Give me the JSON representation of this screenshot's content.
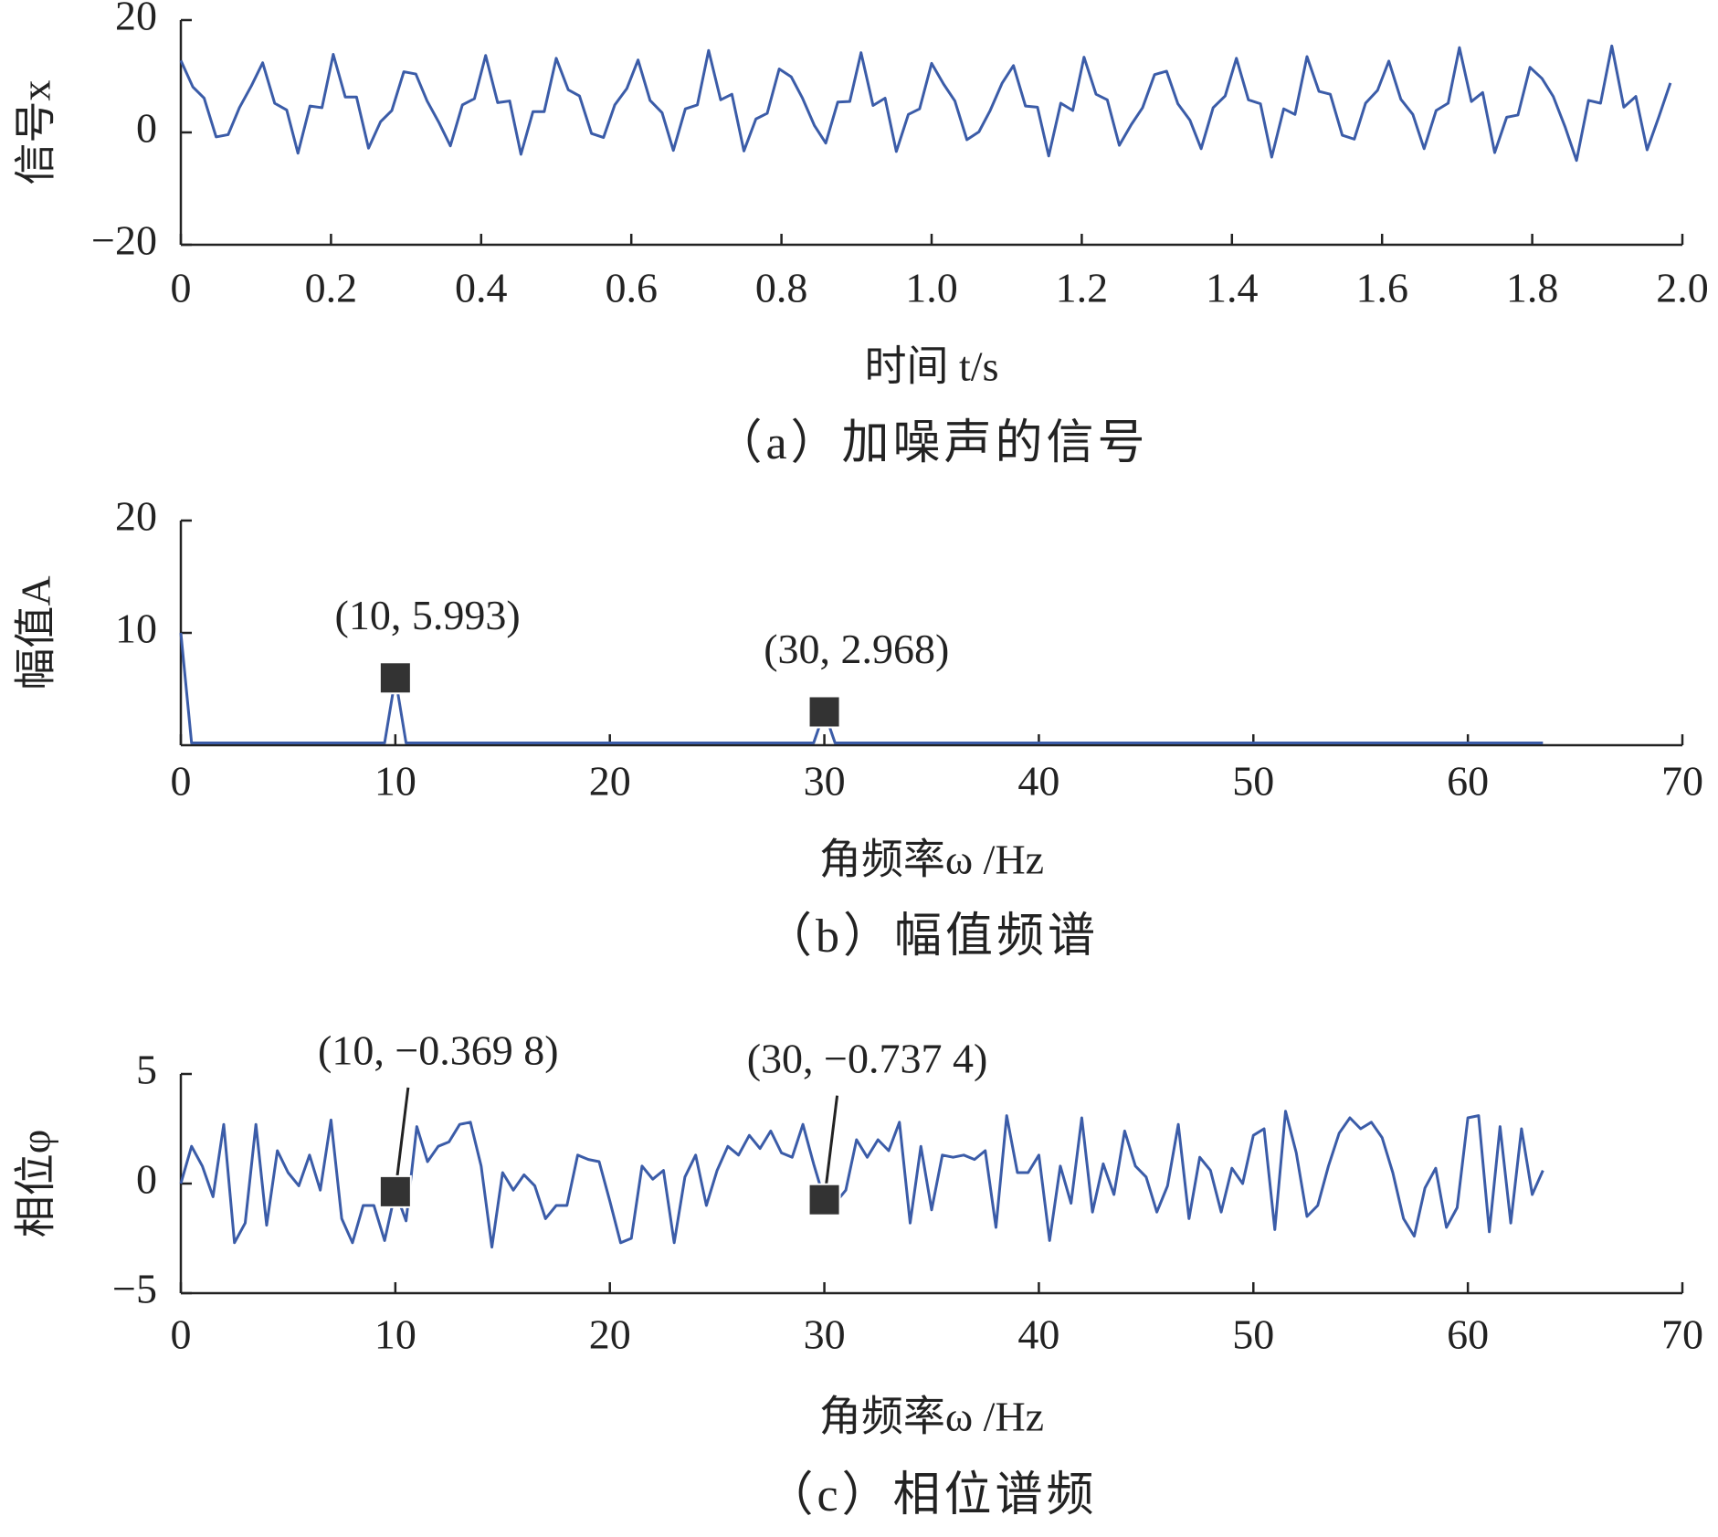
{
  "chart_data": [
    {
      "type": "line",
      "ylabel": "信号x",
      "xlabel": "时间 t/s",
      "caption": "（a）加噪声的信号",
      "color": "#3b5ca8",
      "xlim": [
        0,
        2
      ],
      "xticks": [
        0,
        0.2,
        0.4,
        0.6,
        0.8,
        {
          "value": 1,
          "label": "1.0"
        },
        1.2,
        1.4,
        1.6,
        1.8,
        {
          "value": 2,
          "label": "2.0"
        }
      ],
      "ylim": [
        -20,
        20
      ],
      "yticks": [
        {
          "value": -20,
          "label": "−20"
        },
        0,
        20
      ],
      "x": [
        0,
        0.016,
        0.031,
        0.047,
        0.063,
        0.078,
        0.094,
        0.109,
        0.125,
        0.141,
        0.156,
        0.172,
        0.188,
        0.203,
        0.219,
        0.234,
        0.25,
        0.266,
        0.281,
        0.297,
        0.313,
        0.328,
        0.344,
        0.359,
        0.375,
        0.391,
        0.406,
        0.422,
        0.438,
        0.453,
        0.469,
        0.484,
        0.5,
        0.516,
        0.531,
        0.547,
        0.563,
        0.578,
        0.594,
        0.609,
        0.625,
        0.641,
        0.656,
        0.672,
        0.688,
        0.703,
        0.719,
        0.734,
        0.75,
        0.766,
        0.781,
        0.797,
        0.813,
        0.828,
        0.844,
        0.859,
        0.875,
        0.891,
        0.906,
        0.922,
        0.938,
        0.953,
        0.969,
        0.984,
        1,
        1.016,
        1.031,
        1.047,
        1.063,
        1.078,
        1.094,
        1.109,
        1.125,
        1.141,
        1.156,
        1.172,
        1.188,
        1.203,
        1.219,
        1.234,
        1.25,
        1.266,
        1.281,
        1.297,
        1.313,
        1.328,
        1.344,
        1.359,
        1.375,
        1.391,
        1.406,
        1.422,
        1.438,
        1.453,
        1.469,
        1.484,
        1.5,
        1.516,
        1.531,
        1.547,
        1.563,
        1.578,
        1.594,
        1.609,
        1.625,
        1.641,
        1.656,
        1.672,
        1.688,
        1.703,
        1.719,
        1.734,
        1.75,
        1.766,
        1.781,
        1.797,
        1.813,
        1.828,
        1.844,
        1.859,
        1.875,
        1.891,
        1.906,
        1.922,
        1.938,
        1.953,
        1.969,
        1.984
      ],
      "values": [
        12.8,
        8.1,
        6.1,
        -0.8,
        -0.4,
        4.4,
        8.3,
        12.4,
        5.2,
        4.0,
        -3.7,
        4.7,
        4.4,
        13.9,
        6.3,
        6.3,
        -2.8,
        1.9,
        3.9,
        10.8,
        10.4,
        5.6,
        1.7,
        -2.4,
        4.9,
        6.0,
        13.7,
        5.3,
        5.6,
        -3.9,
        3.7,
        3.7,
        13.2,
        7.6,
        6.5,
        -0.2,
        -0.9,
        4.9,
        7.8,
        12.9,
        5.7,
        3.5,
        -3.2,
        4.2,
        4.9,
        14.6,
        5.8,
        6.8,
        -3.3,
        2.4,
        3.4,
        11.3,
        9.9,
        6.1,
        1.2,
        -1.9,
        5.4,
        5.5,
        14.2,
        4.8,
        6.1,
        -3.4,
        3.2,
        4.2,
        12.3,
        8.6,
        5.6,
        -1.3,
        0.1,
        3.9,
        8.8,
        11.9,
        4.7,
        4.5,
        -4.2,
        5.2,
        3.9,
        13.4,
        6.8,
        5.8,
        -2.3,
        1.4,
        4.4,
        10.3,
        10.9,
        5.1,
        2.2,
        -2.9,
        4.4,
        6.5,
        13.2,
        5.8,
        5.1,
        -4.4,
        4.2,
        3.2,
        13.5,
        7.3,
        6.8,
        -0.5,
        -1.2,
        5.2,
        7.5,
        12.7,
        5.9,
        3.2,
        -2.9,
        3.9,
        5.2,
        15.1,
        5.5,
        7.1,
        -3.6,
        2.7,
        3.1,
        11.6,
        9.6,
        6.4,
        0.9,
        -5.0,
        5.7,
        5.2,
        15.4,
        4.5,
        6.4,
        -3.1,
        2.9,
        8.8
      ]
    },
    {
      "type": "line",
      "ylabel": "幅值A",
      "xlabel": "角频率ω /Hz",
      "caption": "（b）幅值频谱",
      "color": "#3b5ca8",
      "xlim": [
        0,
        70
      ],
      "xticks": [
        0,
        10,
        20,
        30,
        40,
        50,
        60,
        70
      ],
      "ylim": [
        0,
        20
      ],
      "yticks": [
        10,
        20
      ],
      "x": [
        0,
        0.5,
        9.5,
        10,
        10.5,
        29.5,
        30,
        30.5,
        63.5
      ],
      "values": [
        10,
        0.2,
        0.2,
        5.993,
        0.2,
        0.2,
        2.968,
        0.2,
        0.2
      ],
      "annotations": [
        {
          "text": "(10, 5.993)",
          "x": 10,
          "y": 5.993
        },
        {
          "text": "(30, 2.968)",
          "x": 30,
          "y": 2.968
        }
      ]
    },
    {
      "type": "line",
      "ylabel": "相位φ",
      "xlabel": "角频率ω /Hz",
      "caption": "（c）相位谱频",
      "color": "#3b5ca8",
      "xlim": [
        0,
        70
      ],
      "xticks": [
        0,
        10,
        20,
        30,
        40,
        50,
        60,
        70
      ],
      "ylim": [
        -5,
        5
      ],
      "yticks": [
        {
          "value": -5,
          "label": "−5"
        },
        0,
        5
      ],
      "x": [
        0,
        0.5,
        1,
        1.5,
        2,
        2.5,
        3,
        3.5,
        4,
        4.5,
        5,
        5.5,
        6,
        6.5,
        7,
        7.5,
        8,
        8.5,
        9,
        9.5,
        10,
        10.5,
        11,
        11.5,
        12,
        12.5,
        13,
        13.5,
        14,
        14.5,
        15,
        15.5,
        16,
        16.5,
        17,
        17.5,
        18,
        18.5,
        19,
        19.5,
        20,
        20.5,
        21,
        21.5,
        22,
        22.5,
        23,
        23.5,
        24,
        24.5,
        25,
        25.5,
        26,
        26.5,
        27,
        27.5,
        28,
        28.5,
        29,
        29.5,
        30,
        30.5,
        31,
        31.5,
        32,
        32.5,
        33,
        33.5,
        34,
        34.5,
        35,
        35.5,
        36,
        36.5,
        37,
        37.5,
        38,
        38.5,
        39,
        39.5,
        40,
        40.5,
        41,
        41.5,
        42,
        42.5,
        43,
        43.5,
        44,
        44.5,
        45,
        45.5,
        46,
        46.5,
        47,
        47.5,
        48,
        48.5,
        49,
        49.5,
        50,
        50.5,
        51,
        51.5,
        52,
        52.5,
        53,
        53.5,
        54,
        54.5,
        55,
        55.5,
        56,
        56.5,
        57,
        57.5,
        58,
        58.5,
        59,
        59.5,
        60,
        60.5,
        61,
        61.5,
        62,
        62.5,
        63,
        63.5
      ],
      "values": [
        0,
        1.7,
        0.8,
        -0.6,
        2.7,
        -2.7,
        -1.8,
        2.7,
        -1.9,
        1.5,
        0.5,
        -0.1,
        1.3,
        -0.3,
        2.9,
        -1.6,
        -2.7,
        -1,
        -1,
        -2.6,
        -0.3698,
        -1.7,
        2.6,
        1,
        1.7,
        1.9,
        2.7,
        2.8,
        0.8,
        -2.9,
        0.5,
        -0.3,
        0.4,
        -0.1,
        -1.6,
        -1,
        -1,
        1.3,
        1.1,
        1,
        -0.8,
        -2.7,
        -2.5,
        0.8,
        0.2,
        0.6,
        -2.7,
        0.3,
        1.3,
        -1,
        0.6,
        1.7,
        1.3,
        2.2,
        1.6,
        2.4,
        1.4,
        1.2,
        2.7,
        0.9,
        -0.7374,
        -0.9,
        -0.3,
        2,
        1.2,
        2,
        1.5,
        2.8,
        -1.8,
        1.7,
        -1.2,
        1.3,
        1.2,
        1.3,
        1.1,
        1.5,
        -2,
        3.1,
        0.5,
        0.5,
        1.3,
        -2.6,
        0.8,
        -0.9,
        3,
        -1.3,
        0.9,
        -0.5,
        2.4,
        0.8,
        0.3,
        -1.3,
        -0.1,
        2.7,
        -1.6,
        1.2,
        0.6,
        -1.3,
        0.7,
        0,
        2.2,
        2.5,
        -2.1,
        3.3,
        1.4,
        -1.5,
        -1,
        0.8,
        2.3,
        3,
        2.5,
        2.8,
        2.1,
        0.5,
        -1.6,
        -2.4,
        -0.2,
        0.7,
        -2,
        -1.1,
        3,
        3.1,
        -2.2,
        2.6,
        -1.8,
        2.5,
        -0.5,
        0.6
      ],
      "annotations": [
        {
          "text": "(10, −0.369 8)",
          "x": 10,
          "y": -0.3698
        },
        {
          "text": "(30, −0.737 4)",
          "x": 30,
          "y": -0.7374
        }
      ]
    }
  ]
}
